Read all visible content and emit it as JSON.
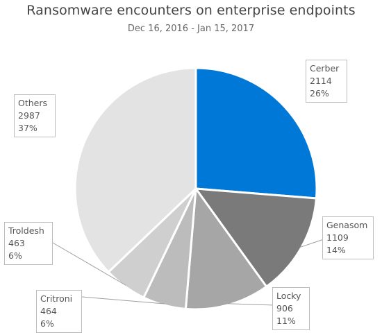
{
  "chart_data": {
    "type": "pie",
    "title": "Ransomware encounters on enterprise endpoints",
    "subtitle": "Dec 16, 2016 - Jan 15, 2017",
    "slices": [
      {
        "name": "Cerber",
        "value": 2114,
        "percent": "26%",
        "color": "#0078d7"
      },
      {
        "name": "Genasom",
        "value": 1109,
        "percent": "14%",
        "color": "#7a7a7a"
      },
      {
        "name": "Locky",
        "value": 906,
        "percent": "11%",
        "color": "#a6a6a6"
      },
      {
        "name": "Critroni",
        "value": 464,
        "percent": "6%",
        "color": "#bcbcbc"
      },
      {
        "name": "Troldesh",
        "value": 463,
        "percent": "6%",
        "color": "#cfcfcf"
      },
      {
        "name": "Others",
        "value": 2987,
        "percent": "37%",
        "color": "#e3e3e3"
      }
    ],
    "legend": "none",
    "start_angle": "12 o'clock",
    "direction": "clockwise"
  }
}
